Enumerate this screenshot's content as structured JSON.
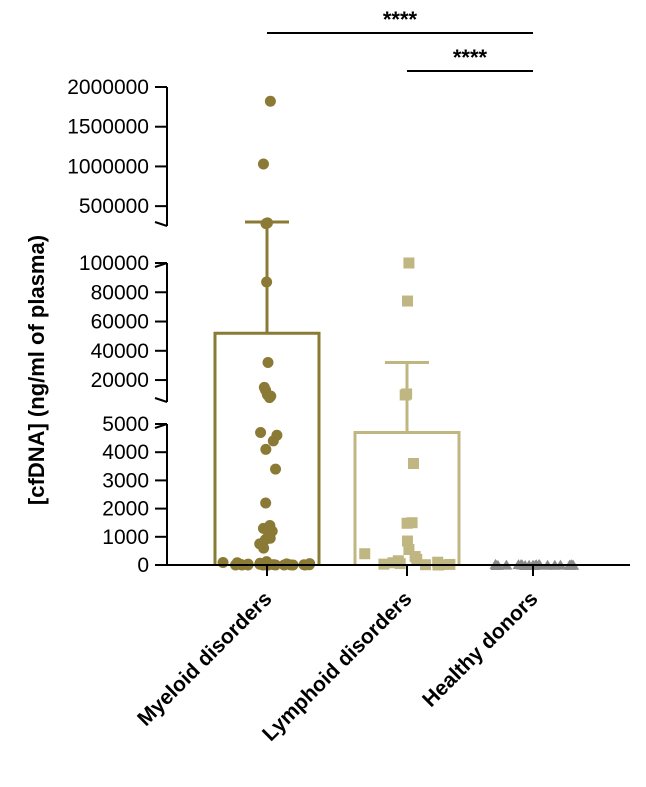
{
  "chart_data": {
    "type": "bar",
    "ylabel": "[cfDNA] (ng/ml of plasma)",
    "categories": [
      "Myeloid disorders",
      "Lymphoid disorders",
      "Healthy donors"
    ],
    "axis_segments": [
      {
        "range": [
          0,
          5000
        ],
        "ticks": [
          0,
          1000,
          2000,
          3000,
          4000,
          5000
        ],
        "tick_labels": [
          "0",
          "1000",
          "2000",
          "3000",
          "4000",
          "5000"
        ]
      },
      {
        "range": [
          5000,
          100000
        ],
        "ticks": [
          20000,
          40000,
          60000,
          80000,
          100000
        ],
        "tick_labels": [
          "20000",
          "40000",
          "60000",
          "80000",
          "100000"
        ]
      },
      {
        "range": [
          250000,
          2000000
        ],
        "ticks": [
          500000,
          1000000,
          1500000,
          2000000
        ],
        "tick_labels": [
          "500000",
          "1000000",
          "1500000",
          "2000000"
        ]
      }
    ],
    "colors": {
      "Myeloid disorders": "#8b7a35",
      "Lymphoid disorders": "#bfb682",
      "Healthy donors": "#8a8a8a"
    },
    "series": [
      {
        "category": "Myeloid disorders",
        "marker": "circle",
        "mean": 52000,
        "sem": 300000,
        "points": [
          1820000,
          1030000,
          290000,
          280000,
          87000,
          32000,
          15000,
          13000,
          10000,
          9000,
          8000,
          4700,
          4600,
          4400,
          4100,
          3400,
          2200,
          1400,
          1300,
          1200,
          1000,
          950,
          900,
          750,
          600,
          120,
          90,
          80,
          60,
          50,
          40,
          30,
          25,
          20,
          15,
          10,
          8,
          5,
          3,
          2,
          1,
          1,
          0,
          0,
          0,
          0,
          0,
          0
        ]
      },
      {
        "category": "Lymphoid disorders",
        "marker": "square",
        "mean": 4700,
        "sem": 32000,
        "points": [
          100000,
          74000,
          10500,
          9800,
          3600,
          1500,
          1480,
          850,
          550,
          400,
          300,
          200,
          150,
          100,
          80,
          50,
          30,
          20,
          10,
          5,
          0
        ]
      },
      {
        "category": "Healthy donors",
        "marker": "triangle",
        "mean": 20,
        "sem": 0,
        "points": [
          40,
          35,
          30,
          30,
          25,
          25,
          20,
          20,
          20,
          18,
          15,
          15,
          12,
          10,
          10,
          8,
          8,
          6,
          5,
          5,
          4,
          3,
          2,
          1
        ]
      }
    ],
    "significance": [
      {
        "groups": [
          "Myeloid disorders",
          "Healthy donors"
        ],
        "label": "****"
      },
      {
        "groups": [
          "Lymphoid disorders",
          "Healthy donors"
        ],
        "label": "****"
      }
    ]
  }
}
